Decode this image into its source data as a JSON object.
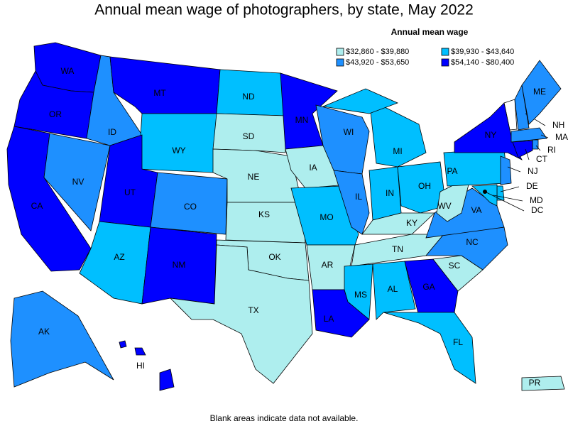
{
  "title": "Annual mean wage of photographers, by state, May 2022",
  "legend": {
    "title": "Annual mean wage",
    "items": [
      {
        "label": "$32,860 - $39,880",
        "color": "#aeeeee"
      },
      {
        "label": "$39,930 - $43,640",
        "color": "#00bfff"
      },
      {
        "label": "$43,920 - $53,650",
        "color": "#1e90ff"
      },
      {
        "label": "$54,140 - $80,400",
        "color": "#0000ff"
      }
    ]
  },
  "states": [
    {
      "label": "WA",
      "class": 3
    },
    {
      "label": "OR",
      "class": 3
    },
    {
      "label": "CA",
      "class": 3
    },
    {
      "label": "NV",
      "class": 2
    },
    {
      "label": "ID",
      "class": 2
    },
    {
      "label": "MT",
      "class": 3
    },
    {
      "label": "WY",
      "class": 1
    },
    {
      "label": "UT",
      "class": 3
    },
    {
      "label": "AZ",
      "class": 1
    },
    {
      "label": "CO",
      "class": 2
    },
    {
      "label": "NM",
      "class": 3
    },
    {
      "label": "ND",
      "class": 1
    },
    {
      "label": "SD",
      "class": 0
    },
    {
      "label": "NE",
      "class": 0
    },
    {
      "label": "KS",
      "class": 0
    },
    {
      "label": "OK",
      "class": 0
    },
    {
      "label": "TX",
      "class": 0
    },
    {
      "label": "MN",
      "class": 3
    },
    {
      "label": "IA",
      "class": 0
    },
    {
      "label": "MO",
      "class": 1
    },
    {
      "label": "AR",
      "class": 0
    },
    {
      "label": "LA",
      "class": 3
    },
    {
      "label": "WI",
      "class": 2
    },
    {
      "label": "IL",
      "class": 2
    },
    {
      "label": "MI",
      "class": 1
    },
    {
      "label": "IN",
      "class": 1
    },
    {
      "label": "OH",
      "class": 1
    },
    {
      "label": "KY",
      "class": 0
    },
    {
      "label": "TN",
      "class": 0
    },
    {
      "label": "MS",
      "class": 1
    },
    {
      "label": "AL",
      "class": 1
    },
    {
      "label": "GA",
      "class": 3
    },
    {
      "label": "FL",
      "class": 1
    },
    {
      "label": "SC",
      "class": 0
    },
    {
      "label": "NC",
      "class": 2
    },
    {
      "label": "VA",
      "class": 2
    },
    {
      "label": "WV",
      "class": 0
    },
    {
      "label": "PA",
      "class": 1
    },
    {
      "label": "NY",
      "class": 3
    },
    {
      "label": "NH",
      "class": 2
    },
    {
      "label": "ME",
      "class": 2
    },
    {
      "label": "MA",
      "class": 2
    },
    {
      "label": "RI",
      "class": 2
    },
    {
      "label": "CT",
      "class": 3
    },
    {
      "label": "NJ",
      "class": 2
    },
    {
      "label": "DE",
      "class": 1
    },
    {
      "label": "MD",
      "class": 1
    },
    {
      "label": "DC",
      "class": 3
    },
    {
      "label": "AK",
      "class": 2
    },
    {
      "label": "HI",
      "class": 3
    },
    {
      "label": "PR",
      "class": 0
    }
  ],
  "note": "Blank areas indicate data not available."
}
